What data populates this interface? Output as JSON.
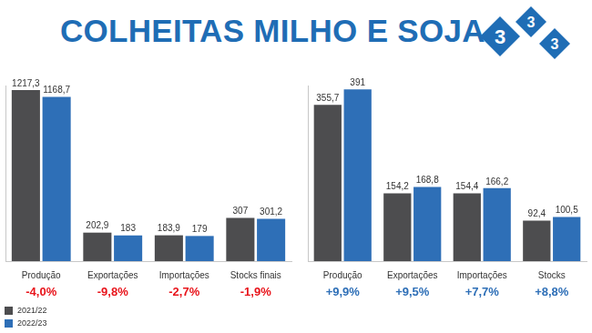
{
  "title": "COLHEITAS MILHO E SOJA",
  "logo": [
    "3",
    "3",
    "3"
  ],
  "chart_data": [
    {
      "type": "bar",
      "categories": [
        "Produção",
        "Exportações",
        "Importações",
        "Stocks finais"
      ],
      "series": [
        {
          "name": "2021/22",
          "color": "#4d4d4f",
          "values": [
            1217.3,
            202.9,
            183.9,
            307
          ],
          "value_labels": [
            "1217,3",
            "202,9",
            "183,9",
            "307"
          ]
        },
        {
          "name": "2022/23",
          "color": "#2e6fb7",
          "values": [
            1168.7,
            183,
            179,
            301.2
          ],
          "value_labels": [
            "1168,7",
            "183",
            "179",
            "301,2"
          ]
        }
      ],
      "annotations": [
        "-4,0%",
        "-9,8%",
        "-2,7%",
        "-1,9%"
      ],
      "ylim": [
        0,
        1250
      ],
      "data_labels": true,
      "tick_labels": "x",
      "grid": false,
      "legend": "lower left"
    },
    {
      "type": "bar",
      "categories": [
        "Produção",
        "Exportações",
        "Importações",
        "Stocks"
      ],
      "series": [
        {
          "name": "2021/22",
          "color": "#4d4d4f",
          "values": [
            355.7,
            154.2,
            154.4,
            92.4
          ],
          "value_labels": [
            "355,7",
            "154,2",
            "154,4",
            "92,4"
          ]
        },
        {
          "name": "2022/23",
          "color": "#2e6fb7",
          "values": [
            391,
            168.8,
            166.2,
            100.5
          ],
          "value_labels": [
            "391",
            "168,8",
            "166,2",
            "100,5"
          ]
        }
      ],
      "annotations": [
        "+9,9%",
        "+9,5%",
        "+7,7%",
        "+8,8%"
      ],
      "ylim": [
        0,
        400
      ],
      "data_labels": true,
      "tick_labels": "x",
      "grid": false
    }
  ]
}
